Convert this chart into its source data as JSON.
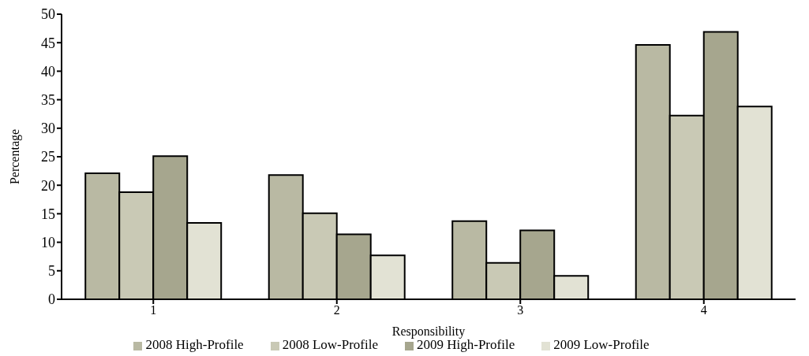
{
  "chart_data": {
    "type": "bar",
    "xlabel": "Responsibility",
    "ylabel": "Percentage",
    "categories": [
      "1",
      "2",
      "3",
      "4"
    ],
    "series": [
      {
        "name": "2008 High-Profile",
        "color": "#b9b9a3",
        "values": [
          22.1,
          21.8,
          13.7,
          44.6
        ]
      },
      {
        "name": "2008 Low-Profile",
        "color": "#c9c9b5",
        "values": [
          18.8,
          15.1,
          6.4,
          32.2
        ]
      },
      {
        "name": "2009 High-Profile",
        "color": "#a6a68e",
        "values": [
          25.1,
          11.4,
          12.1,
          46.9
        ]
      },
      {
        "name": "2009 Low-Profile",
        "color": "#e2e2d4",
        "values": [
          13.4,
          7.7,
          4.1,
          33.8
        ]
      }
    ],
    "ylim": [
      0,
      50
    ],
    "yticks": [
      0,
      5,
      10,
      15,
      20,
      25,
      30,
      35,
      40,
      45,
      50
    ],
    "grid": false,
    "legend": "bottom"
  }
}
